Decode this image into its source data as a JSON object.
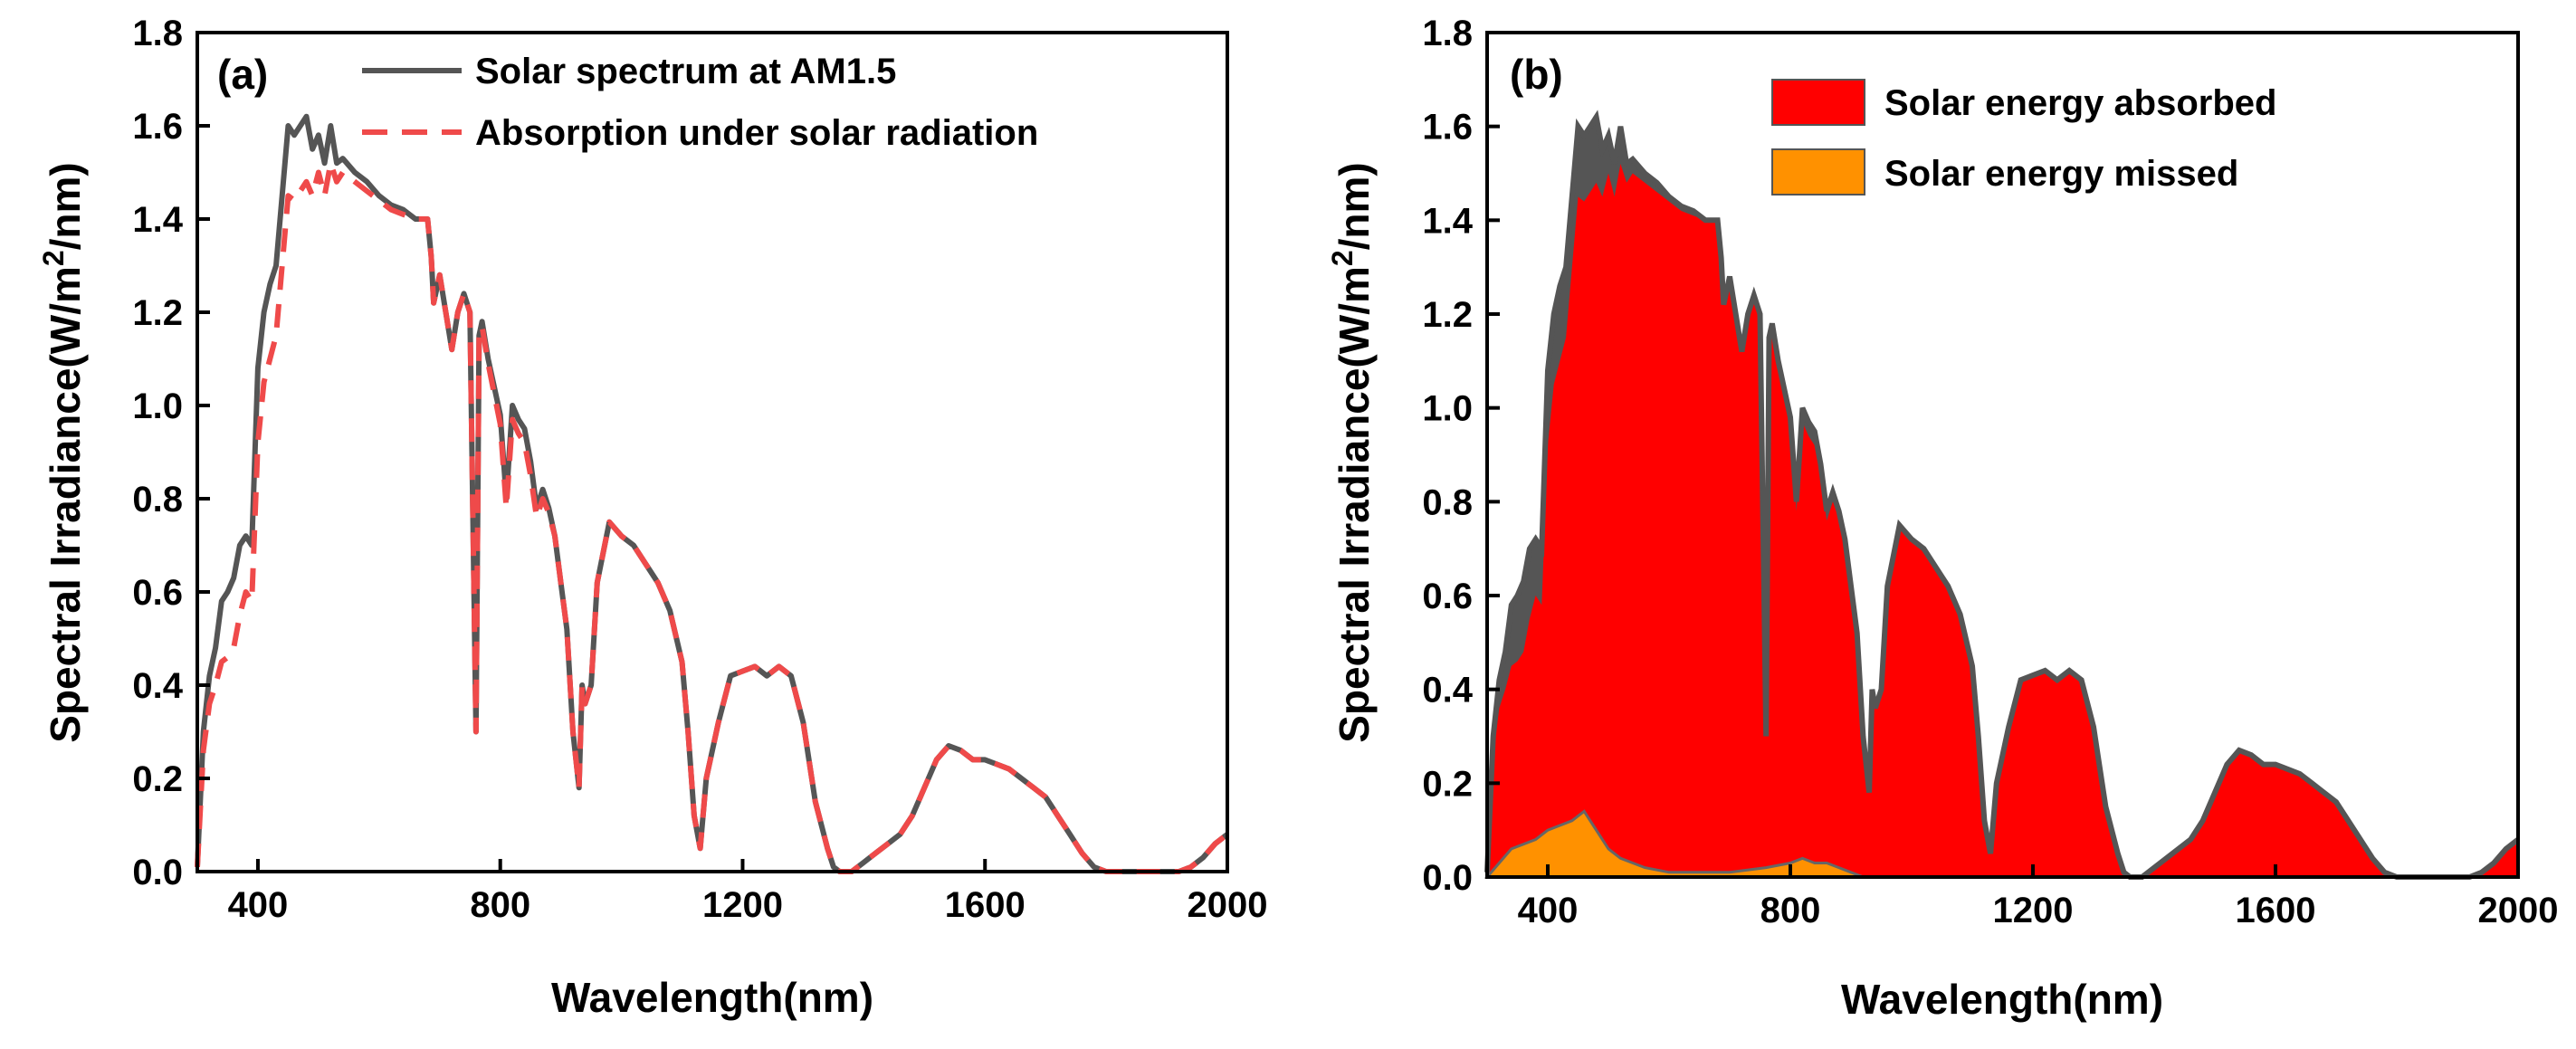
{
  "figure": {
    "panels": [
      "(a)",
      "(b)"
    ]
  },
  "colors": {
    "spectrum": "#555555",
    "absorbed": "#ff0000",
    "missed": "#ff9100",
    "absorption_dash": "#ef4a4a"
  },
  "chart_data": [
    {
      "type": "line",
      "panel_label": "(a)",
      "xlabel": "Wavelength(nm)",
      "ylabel": "Spectral Irradiance(W/m2/nm)",
      "ylabel_parts": {
        "main": "Spectral Irradiance(W/m",
        "sup": "2",
        "tail": "/nm)"
      },
      "xlim": [
        300,
        2000
      ],
      "ylim": [
        0,
        1.8
      ],
      "xticks": [
        400,
        800,
        1200,
        1600,
        2000
      ],
      "yticks": [
        0.0,
        0.2,
        0.4,
        0.6,
        0.8,
        1.0,
        1.2,
        1.4,
        1.6,
        1.8
      ],
      "ytick_labels": [
        "0.0",
        "0.2",
        "0.4",
        "0.6",
        "0.8",
        "1.0",
        "1.2",
        "1.4",
        "1.6",
        "1.8"
      ],
      "legend_position": "top-center",
      "series": [
        {
          "name": "Solar spectrum at  AM1.5",
          "style": "solid",
          "x": [
            300,
            310,
            320,
            330,
            340,
            350,
            360,
            370,
            380,
            390,
            400,
            410,
            420,
            430,
            440,
            450,
            460,
            470,
            480,
            490,
            500,
            510,
            520,
            530,
            540,
            560,
            580,
            600,
            620,
            640,
            660,
            680,
            686,
            690,
            700,
            710,
            720,
            730,
            740,
            750,
            760,
            765,
            770,
            780,
            800,
            810,
            820,
            830,
            840,
            850,
            860,
            870,
            880,
            890,
            900,
            910,
            920,
            930,
            935,
            940,
            950,
            960,
            980,
            1000,
            1020,
            1040,
            1060,
            1080,
            1100,
            1110,
            1120,
            1130,
            1140,
            1160,
            1180,
            1200,
            1220,
            1240,
            1260,
            1280,
            1300,
            1320,
            1340,
            1350,
            1360,
            1380,
            1400,
            1420,
            1440,
            1460,
            1480,
            1500,
            1520,
            1540,
            1560,
            1580,
            1600,
            1620,
            1640,
            1660,
            1680,
            1700,
            1720,
            1740,
            1760,
            1780,
            1800,
            1820,
            1840,
            1860,
            1880,
            1900,
            1920,
            1940,
            1960,
            1980,
            2000
          ],
          "y": [
            0.01,
            0.3,
            0.42,
            0.48,
            0.58,
            0.6,
            0.63,
            0.7,
            0.72,
            0.7,
            1.08,
            1.2,
            1.26,
            1.3,
            1.45,
            1.6,
            1.58,
            1.6,
            1.62,
            1.55,
            1.58,
            1.52,
            1.6,
            1.52,
            1.53,
            1.5,
            1.48,
            1.45,
            1.43,
            1.42,
            1.4,
            1.4,
            1.32,
            1.22,
            1.28,
            1.2,
            1.12,
            1.2,
            1.24,
            1.2,
            0.3,
            1.15,
            1.18,
            1.1,
            0.98,
            0.8,
            1.0,
            0.97,
            0.95,
            0.88,
            0.78,
            0.82,
            0.78,
            0.72,
            0.62,
            0.52,
            0.3,
            0.18,
            0.4,
            0.36,
            0.4,
            0.62,
            0.75,
            0.72,
            0.7,
            0.66,
            0.62,
            0.56,
            0.45,
            0.3,
            0.12,
            0.05,
            0.2,
            0.32,
            0.42,
            0.43,
            0.44,
            0.42,
            0.44,
            0.42,
            0.32,
            0.15,
            0.05,
            0.01,
            0.0,
            0.0,
            0.02,
            0.04,
            0.06,
            0.08,
            0.12,
            0.18,
            0.24,
            0.27,
            0.26,
            0.24,
            0.24,
            0.23,
            0.22,
            0.2,
            0.18,
            0.16,
            0.12,
            0.08,
            0.04,
            0.01,
            0.0,
            0.0,
            0.0,
            0.0,
            0.0,
            0.0,
            0.0,
            0.01,
            0.03,
            0.06,
            0.08
          ]
        },
        {
          "name": "Absorption under solar radiation",
          "style": "dashed",
          "x": [
            300,
            310,
            320,
            330,
            340,
            350,
            360,
            370,
            380,
            390,
            400,
            410,
            420,
            430,
            440,
            450,
            460,
            470,
            480,
            490,
            500,
            510,
            520,
            530,
            540,
            560,
            580,
            600,
            620,
            640,
            660,
            680,
            686,
            690,
            700,
            710,
            720,
            730,
            740,
            750,
            760,
            765,
            770,
            780,
            800,
            810,
            820,
            830,
            840,
            850,
            860,
            870,
            880,
            890,
            900,
            910,
            920,
            930,
            935,
            940,
            950,
            960,
            980,
            1000,
            1020,
            1040,
            1060,
            1080,
            1100,
            1110,
            1120,
            1130,
            1140,
            1160,
            1180,
            1200,
            1220,
            1240,
            1260,
            1280,
            1300,
            1320,
            1340,
            1350,
            1360,
            1380,
            1400,
            1420,
            1440,
            1460,
            1480,
            1500,
            1520,
            1540,
            1560,
            1580,
            1600,
            1620,
            1640,
            1660,
            1680,
            1700,
            1720,
            1740,
            1760,
            1780,
            1800,
            1820,
            1840,
            1860,
            1880,
            1900,
            1920,
            1940,
            1960,
            1980,
            2000
          ],
          "y": [
            0.01,
            0.26,
            0.36,
            0.4,
            0.45,
            0.46,
            0.48,
            0.55,
            0.6,
            0.58,
            0.92,
            1.05,
            1.1,
            1.15,
            1.3,
            1.45,
            1.44,
            1.46,
            1.48,
            1.45,
            1.5,
            1.45,
            1.52,
            1.48,
            1.5,
            1.48,
            1.46,
            1.44,
            1.42,
            1.41,
            1.4,
            1.4,
            1.32,
            1.22,
            1.28,
            1.2,
            1.12,
            1.2,
            1.24,
            1.2,
            0.3,
            1.15,
            1.17,
            1.09,
            0.96,
            0.78,
            0.97,
            0.94,
            0.92,
            0.85,
            0.76,
            0.8,
            0.77,
            0.72,
            0.62,
            0.52,
            0.3,
            0.18,
            0.4,
            0.36,
            0.4,
            0.62,
            0.75,
            0.72,
            0.7,
            0.66,
            0.62,
            0.56,
            0.45,
            0.3,
            0.12,
            0.05,
            0.2,
            0.32,
            0.42,
            0.43,
            0.44,
            0.42,
            0.44,
            0.42,
            0.32,
            0.15,
            0.05,
            0.01,
            0.0,
            0.0,
            0.02,
            0.04,
            0.06,
            0.08,
            0.12,
            0.18,
            0.24,
            0.27,
            0.26,
            0.24,
            0.24,
            0.23,
            0.22,
            0.2,
            0.18,
            0.16,
            0.12,
            0.08,
            0.04,
            0.01,
            0.0,
            0.0,
            0.0,
            0.0,
            0.0,
            0.0,
            0.0,
            0.01,
            0.03,
            0.06,
            0.08
          ]
        }
      ]
    },
    {
      "type": "area",
      "panel_label": "(b)",
      "xlabel": "Wavelength(nm)",
      "ylabel": "Spectral Irradiance(W/m2/nm)",
      "ylabel_parts": {
        "main": "Spectral Irradiance(W/m",
        "sup": "2",
        "tail": "/nm)"
      },
      "xlim": [
        300,
        2000
      ],
      "ylim": [
        0,
        1.8
      ],
      "xticks": [
        400,
        800,
        1200,
        1600,
        2000
      ],
      "yticks": [
        0.0,
        0.2,
        0.4,
        0.6,
        0.8,
        1.0,
        1.2,
        1.4,
        1.6,
        1.8
      ],
      "ytick_labels": [
        "0.0",
        "0.2",
        "0.4",
        "0.6",
        "0.8",
        "1.0",
        "1.2",
        "1.4",
        "1.6",
        "1.8"
      ],
      "legend_position": "top-right",
      "series": [
        {
          "name": "Solar energy absorbed",
          "style": "filled",
          "x": [
            300,
            310,
            320,
            330,
            340,
            350,
            360,
            370,
            380,
            390,
            400,
            410,
            420,
            430,
            440,
            450,
            460,
            470,
            480,
            490,
            500,
            510,
            520,
            530,
            540,
            560,
            580,
            600,
            620,
            640,
            660,
            680,
            686,
            690,
            700,
            710,
            720,
            730,
            740,
            750,
            760,
            765,
            770,
            780,
            800,
            810,
            820,
            830,
            840,
            850,
            860,
            870,
            880,
            890,
            900,
            910,
            920,
            930,
            935,
            940,
            950,
            960,
            980,
            1000,
            1020,
            1040,
            1060,
            1080,
            1100,
            1110,
            1120,
            1130,
            1140,
            1160,
            1180,
            1200,
            1220,
            1240,
            1260,
            1280,
            1300,
            1320,
            1340,
            1350,
            1360,
            1380,
            1400,
            1420,
            1440,
            1460,
            1480,
            1500,
            1520,
            1540,
            1560,
            1580,
            1600,
            1620,
            1640,
            1660,
            1680,
            1700,
            1720,
            1740,
            1760,
            1780,
            1800,
            1820,
            1840,
            1860,
            1880,
            1900,
            1920,
            1940,
            1960,
            1980,
            2000
          ],
          "y": [
            0.01,
            0.26,
            0.36,
            0.4,
            0.45,
            0.46,
            0.48,
            0.55,
            0.6,
            0.58,
            0.92,
            1.05,
            1.1,
            1.15,
            1.3,
            1.45,
            1.44,
            1.46,
            1.48,
            1.45,
            1.5,
            1.45,
            1.52,
            1.48,
            1.5,
            1.48,
            1.46,
            1.44,
            1.42,
            1.41,
            1.4,
            1.4,
            1.32,
            1.22,
            1.28,
            1.2,
            1.12,
            1.2,
            1.24,
            1.2,
            0.3,
            1.15,
            1.17,
            1.09,
            0.96,
            0.78,
            0.97,
            0.94,
            0.92,
            0.85,
            0.76,
            0.8,
            0.77,
            0.72,
            0.62,
            0.52,
            0.3,
            0.18,
            0.4,
            0.36,
            0.4,
            0.62,
            0.75,
            0.72,
            0.7,
            0.66,
            0.62,
            0.56,
            0.45,
            0.3,
            0.12,
            0.05,
            0.2,
            0.32,
            0.42,
            0.43,
            0.44,
            0.42,
            0.44,
            0.42,
            0.32,
            0.15,
            0.05,
            0.01,
            0.0,
            0.0,
            0.02,
            0.04,
            0.06,
            0.08,
            0.12,
            0.18,
            0.24,
            0.27,
            0.26,
            0.24,
            0.24,
            0.23,
            0.22,
            0.2,
            0.18,
            0.16,
            0.12,
            0.08,
            0.04,
            0.01,
            0.0,
            0.0,
            0.0,
            0.0,
            0.0,
            0.0,
            0.0,
            0.01,
            0.03,
            0.06,
            0.08
          ]
        },
        {
          "name": "Solar energy missed",
          "style": "filled",
          "x": [
            300,
            340,
            380,
            400,
            420,
            440,
            450,
            460,
            470,
            480,
            500,
            520,
            560,
            600,
            640,
            700,
            760,
            800,
            820,
            840,
            860,
            880,
            900,
            920,
            935,
            960,
            1000,
            1100,
            1400,
            2000
          ],
          "y": [
            0.0,
            0.06,
            0.08,
            0.1,
            0.11,
            0.12,
            0.13,
            0.14,
            0.12,
            0.1,
            0.06,
            0.04,
            0.02,
            0.01,
            0.01,
            0.01,
            0.02,
            0.03,
            0.04,
            0.03,
            0.03,
            0.02,
            0.01,
            0.0,
            0.0,
            0.0,
            0.0,
            0.0,
            0.0,
            0.0
          ]
        }
      ]
    }
  ]
}
